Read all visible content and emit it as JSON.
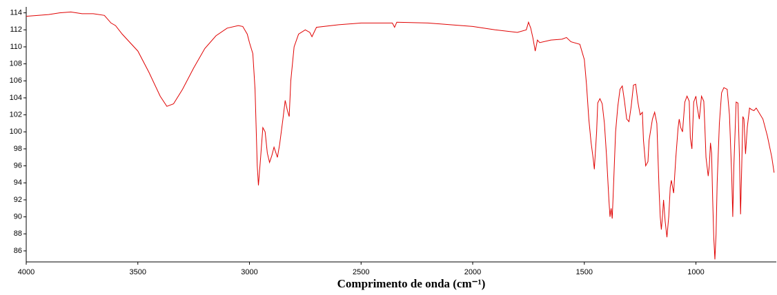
{
  "chart_data": {
    "type": "line",
    "x_label": "Comprimento de onda (cm⁻¹)",
    "x": [
      4000,
      3900,
      3850,
      3800,
      3750,
      3700,
      3650,
      3620,
      3600,
      3570,
      3500,
      3450,
      3400,
      3370,
      3340,
      3300,
      3250,
      3200,
      3150,
      3100,
      3050,
      3030,
      3010,
      3000,
      2985,
      2975,
      2965,
      2960,
      2950,
      2940,
      2930,
      2920,
      2910,
      2900,
      2890,
      2875,
      2865,
      2850,
      2840,
      2830,
      2822,
      2815,
      2800,
      2780,
      2750,
      2730,
      2720,
      2700,
      2600,
      2500,
      2400,
      2360,
      2350,
      2340,
      2200,
      2100,
      2000,
      1900,
      1800,
      1760,
      1750,
      1740,
      1730,
      1720,
      1710,
      1700,
      1650,
      1600,
      1580,
      1560,
      1520,
      1500,
      1490,
      1480,
      1470,
      1460,
      1455,
      1445,
      1440,
      1430,
      1420,
      1410,
      1400,
      1390,
      1385,
      1380,
      1375,
      1370,
      1360,
      1350,
      1340,
      1330,
      1320,
      1310,
      1300,
      1290,
      1280,
      1270,
      1260,
      1250,
      1240,
      1235,
      1225,
      1215,
      1210,
      1195,
      1185,
      1175,
      1165,
      1160,
      1155,
      1150,
      1145,
      1138,
      1130,
      1122,
      1115,
      1110,
      1100,
      1090,
      1080,
      1075,
      1068,
      1060,
      1050,
      1040,
      1030,
      1025,
      1018,
      1010,
      1000,
      995,
      985,
      975,
      965,
      960,
      955,
      945,
      940,
      935,
      930,
      925,
      920,
      915,
      910,
      905,
      895,
      885,
      875,
      860,
      850,
      840,
      835,
      830,
      820,
      812,
      805,
      800,
      795,
      790,
      785,
      778,
      770,
      760,
      750,
      740,
      730,
      700,
      680,
      660,
      650
    ],
    "series": [
      {
        "color": "#e00000",
        "values": [
          113.6,
          113.8,
          114.0,
          114.1,
          113.9,
          113.9,
          113.7,
          112.8,
          112.5,
          111.5,
          109.5,
          107.0,
          104.2,
          103.0,
          103.3,
          105.0,
          107.5,
          109.8,
          111.3,
          112.2,
          112.5,
          112.4,
          111.5,
          110.5,
          109.2,
          105,
          96,
          93.7,
          97,
          100.5,
          100,
          97.5,
          96.4,
          97.2,
          98.2,
          97.0,
          98.5,
          101.5,
          103.7,
          102.5,
          101.8,
          106,
          110,
          111.5,
          112.0,
          111.7,
          111.2,
          112.3,
          112.6,
          112.8,
          112.8,
          112.8,
          112.3,
          112.9,
          112.8,
          112.6,
          112.4,
          112.0,
          111.7,
          112.0,
          112.9,
          112.2,
          111.0,
          109.5,
          110.8,
          110.5,
          110.8,
          110.9,
          111.1,
          110.6,
          110.3,
          108.5,
          105.5,
          101.5,
          98.8,
          96.8,
          95.6,
          100,
          103.4,
          103.9,
          103.3,
          101,
          97,
          92,
          90.0,
          91,
          89.8,
          93,
          100,
          103,
          105,
          105.4,
          103.6,
          101.5,
          101.2,
          103,
          105.5,
          105.6,
          103.5,
          102.0,
          102.3,
          99,
          96.0,
          96.5,
          99,
          101.5,
          102.3,
          101,
          93,
          90,
          88.5,
          90,
          92,
          89.5,
          87.6,
          90,
          93.5,
          94.3,
          92.8,
          97,
          100.5,
          101.5,
          100.5,
          100,
          103.5,
          104.2,
          103.6,
          99.3,
          98,
          103.5,
          104.2,
          103,
          101.5,
          104.2,
          103.6,
          100.5,
          97,
          94.8,
          96,
          98.7,
          97.5,
          92,
          87.5,
          85,
          88,
          94,
          101,
          104.6,
          105.2,
          105.0,
          102,
          95,
          90.0,
          96,
          103.5,
          103.4,
          97,
          90.3,
          96,
          101.8,
          101.5,
          97.4,
          100.5,
          102.8,
          102.6,
          102.5,
          102.8,
          101.5,
          99.5,
          97,
          95.2
        ]
      }
    ],
    "xlim": [
      4000,
      640
    ],
    "xticks": [
      4000,
      3500,
      3000,
      2500,
      2000,
      1500,
      1000
    ],
    "ylim": [
      84.7,
      114.7
    ],
    "yticks": [
      86,
      88,
      90,
      92,
      94,
      96,
      98,
      100,
      102,
      104,
      106,
      108,
      110,
      112,
      114
    ]
  }
}
